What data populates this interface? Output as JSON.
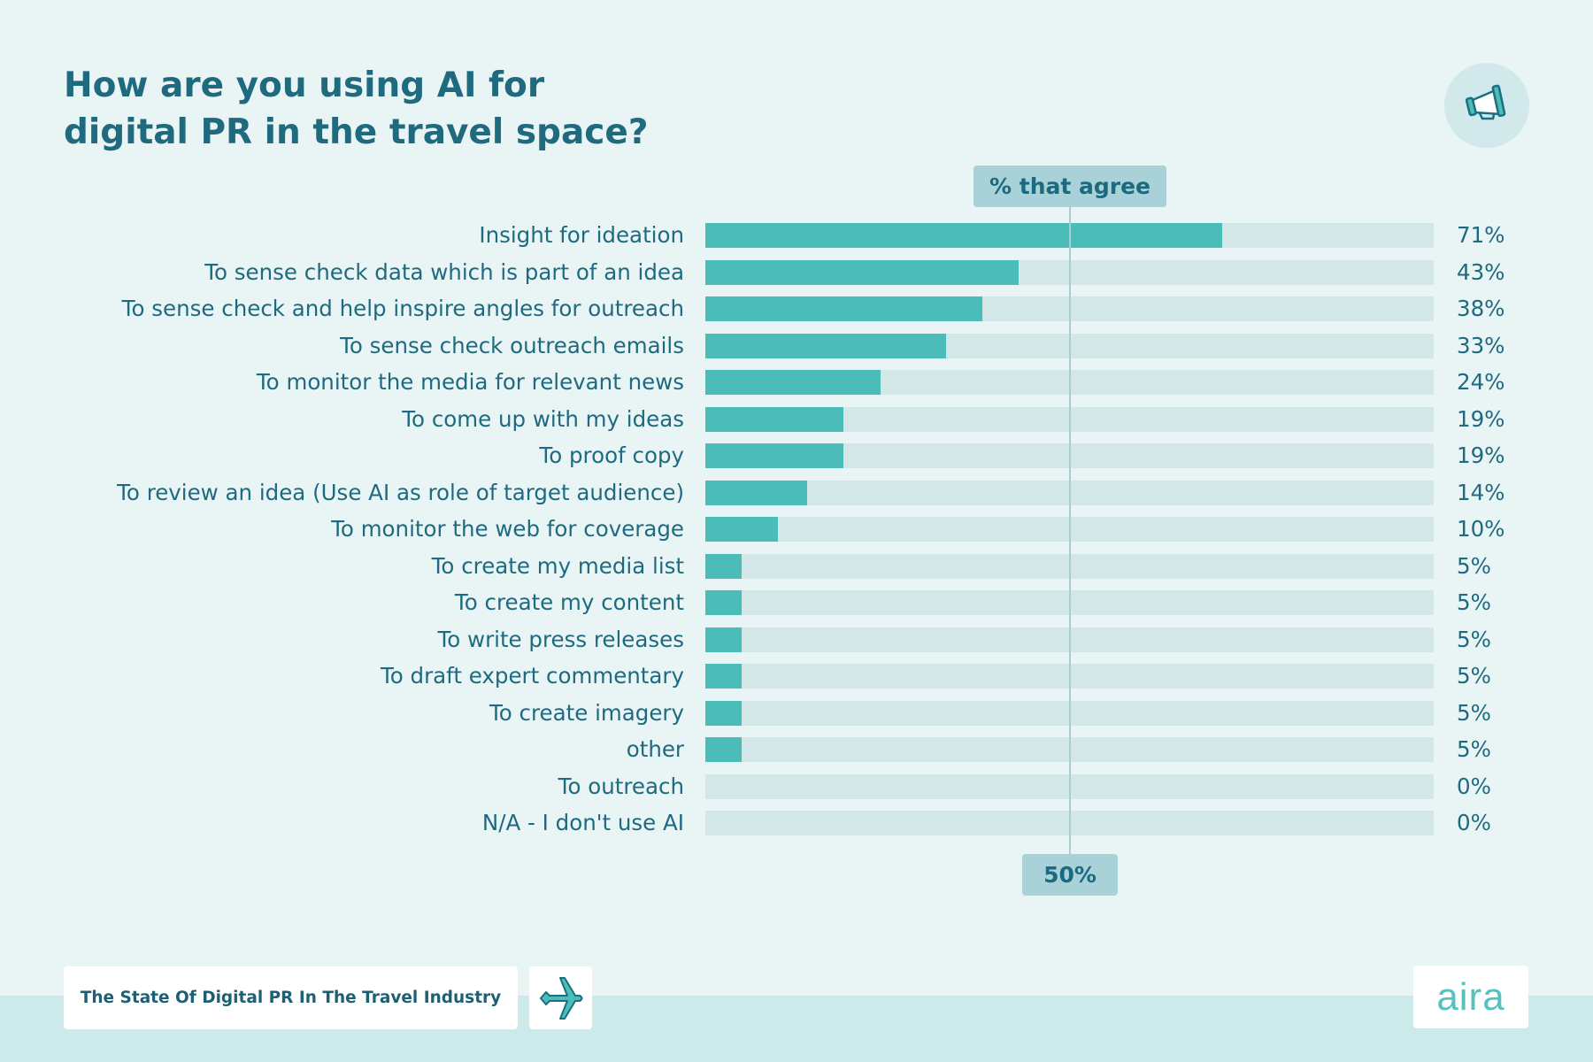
{
  "title": "How are you using AI for\ndigital PR in the travel space?",
  "icon": "megaphone-icon",
  "colors": {
    "bar": "#4bbcb8",
    "track": "#d3e7e9",
    "text": "#1e6a80",
    "background": "#e9f5f5"
  },
  "chart_data": {
    "type": "bar",
    "orientation": "horizontal",
    "title": "How are you using AI for digital PR in the travel space?",
    "header_label": "% that agree",
    "reference_line": {
      "value": 50,
      "label": "50%"
    },
    "xlim": [
      0,
      100
    ],
    "categories": [
      "Insight for ideation",
      "To sense check data which is part of an idea",
      "To sense check and help inspire angles for outreach",
      "To sense check outreach emails",
      "To monitor the media for relevant news",
      "To come up with my ideas",
      "To proof copy",
      "To review an idea (Use AI as role of target audience)",
      "To monitor the web for coverage",
      "To create my media list",
      "To create my content",
      "To write press releases",
      "To draft expert commentary",
      "To create imagery",
      "other",
      "To outreach",
      "N/A - I don't use AI"
    ],
    "values": [
      71,
      43,
      38,
      33,
      24,
      19,
      19,
      14,
      10,
      5,
      5,
      5,
      5,
      5,
      5,
      0,
      0
    ],
    "value_labels": [
      "71%",
      "43%",
      "38%",
      "33%",
      "24%",
      "19%",
      "19%",
      "14%",
      "10%",
      "5%",
      "5%",
      "5%",
      "5%",
      "5%",
      "5%",
      "0%",
      "0%"
    ]
  },
  "footer": {
    "report_title": "The State Of Digital PR In The Travel Industry",
    "plane_icon": "airplane-icon",
    "logo": "aira"
  }
}
